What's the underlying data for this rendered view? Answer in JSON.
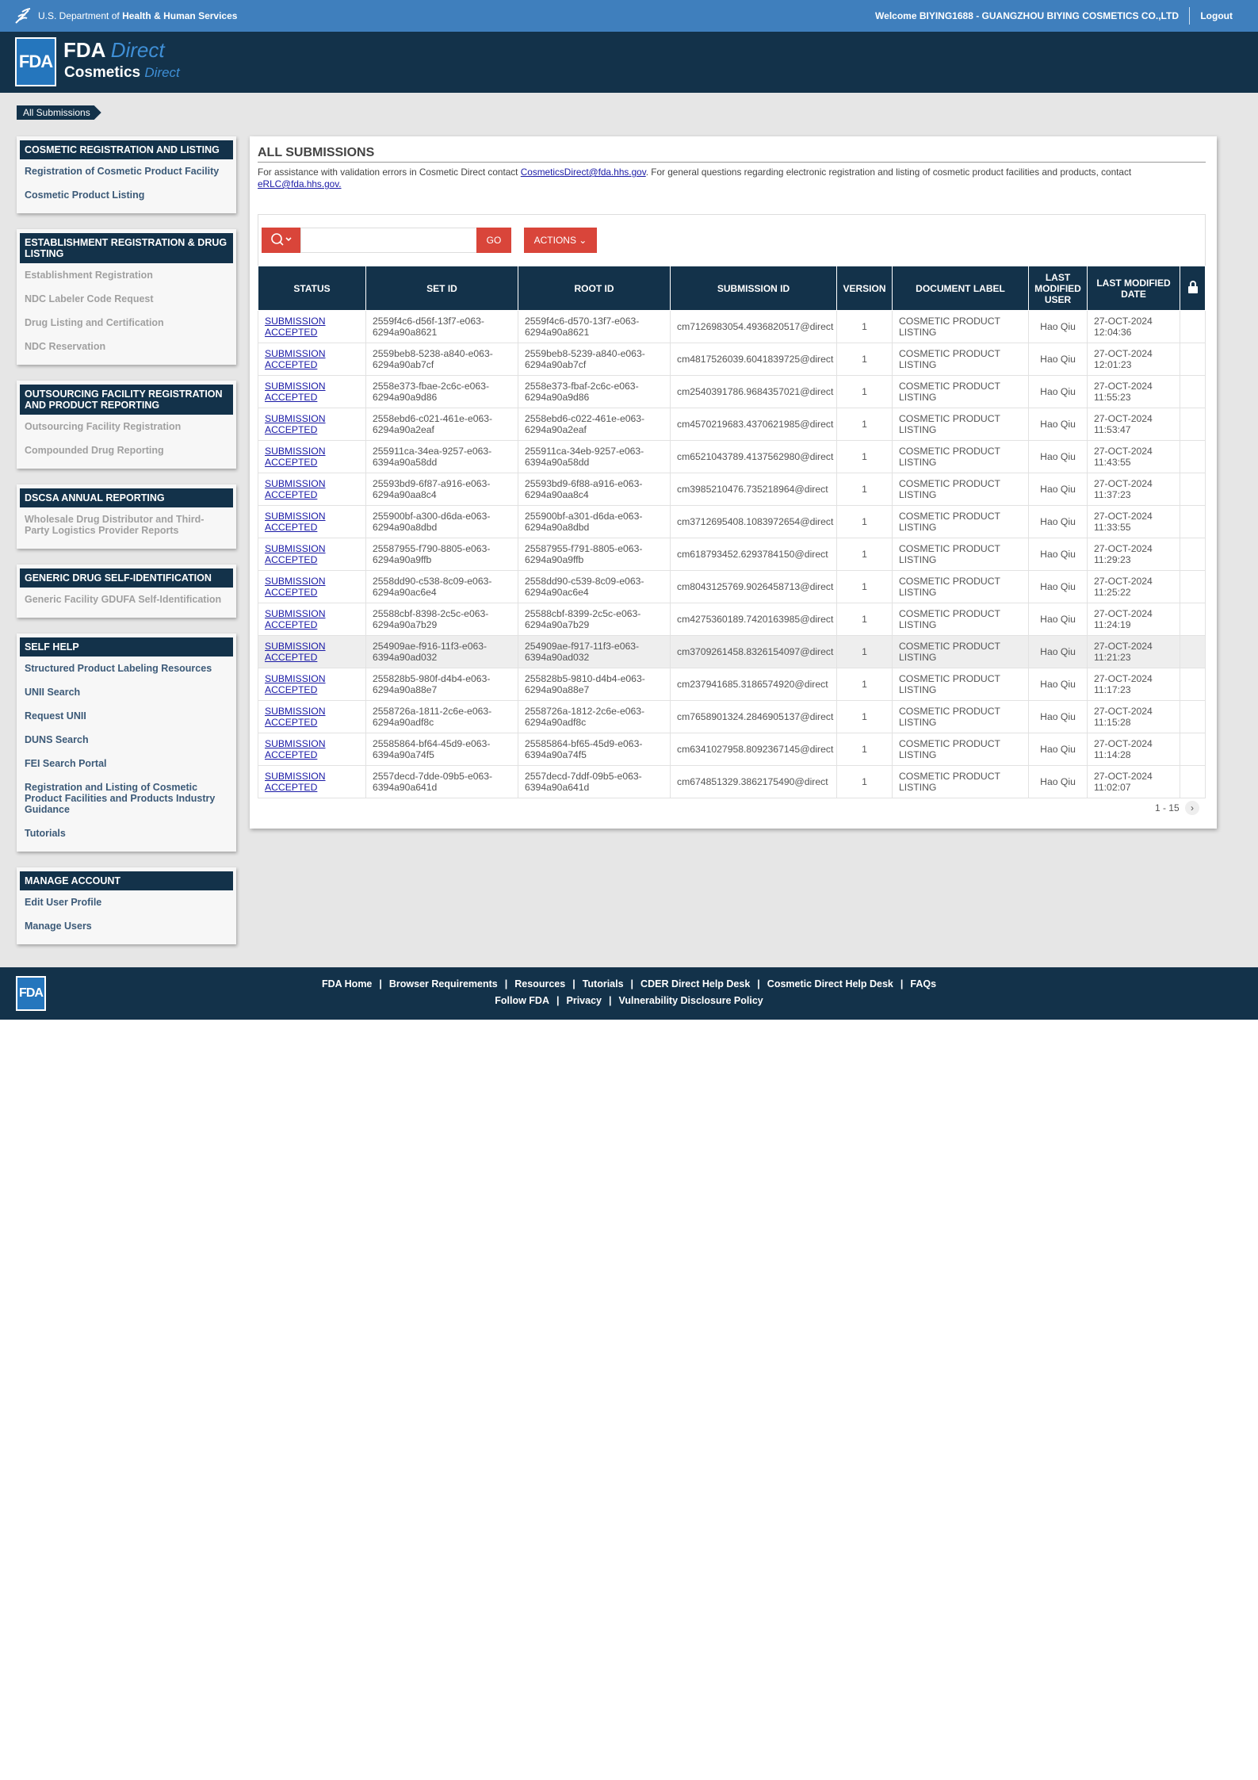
{
  "top_bar": {
    "agency_prefix": "U.S. Department of",
    "agency": "Health & Human Services",
    "welcome": "Welcome BIYING1688 - GUANGZHOU BIYING COSMETICS CO.,LTD",
    "logout": "Logout"
  },
  "header": {
    "logo": "FDA",
    "brand": "FDA",
    "brand_suffix": "Direct",
    "product": "Cosmetics",
    "product_suffix": "Direct"
  },
  "breadcrumb": "All Submissions",
  "sidebar": [
    {
      "title": "COSMETIC REGISTRATION AND LISTING",
      "enabled": true,
      "links": [
        "Registration of Cosmetic Product Facility",
        "Cosmetic Product Listing"
      ]
    },
    {
      "title": "ESTABLISHMENT REGISTRATION & DRUG LISTING",
      "enabled": false,
      "links": [
        "Establishment Registration",
        "NDC Labeler Code Request",
        "Drug Listing and Certification",
        "NDC Reservation"
      ]
    },
    {
      "title": "OUTSOURCING FACILITY REGISTRATION AND PRODUCT REPORTING",
      "enabled": false,
      "links": [
        "Outsourcing Facility Registration",
        "Compounded Drug Reporting"
      ]
    },
    {
      "title": "DSCSA ANNUAL REPORTING",
      "enabled": false,
      "links": [
        "Wholesale Drug Distributor and Third-Party Logistics Provider Reports"
      ]
    },
    {
      "title": "GENERIC DRUG SELF-IDENTIFICATION",
      "enabled": false,
      "links": [
        "Generic Facility GDUFA Self-Identification"
      ]
    },
    {
      "title": "SELF HELP",
      "enabled": true,
      "links": [
        "Structured Product Labeling Resources",
        "UNII Search",
        "Request UNII",
        "DUNS Search",
        "FEI Search Portal",
        "Registration and Listing of Cosmetic Product Facilities and Products Industry Guidance",
        "Tutorials"
      ]
    },
    {
      "title": "MANAGE ACCOUNT",
      "enabled": true,
      "links": [
        "Edit User Profile",
        "Manage Users"
      ]
    }
  ],
  "main": {
    "title": "ALL SUBMISSIONS",
    "notice": {
      "text_before": "For assistance with validation errors in Cosmetic Direct contact ",
      "link1": "CosmeticsDirect@fda.hhs.gov",
      "text_middle": ". For general questions regarding electronic registration and listing of cosmetic product facilities and products, contact ",
      "link2": "eRLC@fda.hhs.gov."
    },
    "go": "GO",
    "actions": "ACTIONS",
    "columns": [
      "STATUS",
      "SET ID",
      "ROOT ID",
      "SUBMISSION ID",
      "VERSION",
      "DOCUMENT LABEL",
      "LAST MODIFIED USER",
      "LAST MODIFIED DATE"
    ],
    "rows": [
      [
        "SUBMISSION ACCEPTED",
        "2559f4c6-d56f-13f7-e063-6294a90a8621",
        "2559f4c6-d570-13f7-e063-6294a90a8621",
        "cm7126983054.4936820517@direct",
        "1",
        "COSMETIC PRODUCT LISTING",
        "Hao Qiu",
        "27-OCT-2024 12:04:36"
      ],
      [
        "SUBMISSION ACCEPTED",
        "2559beb8-5238-a840-e063-6294a90ab7cf",
        "2559beb8-5239-a840-e063-6294a90ab7cf",
        "cm4817526039.6041839725@direct",
        "1",
        "COSMETIC PRODUCT LISTING",
        "Hao Qiu",
        "27-OCT-2024 12:01:23"
      ],
      [
        "SUBMISSION ACCEPTED",
        "2558e373-fbae-2c6c-e063-6294a90a9d86",
        "2558e373-fbaf-2c6c-e063-6294a90a9d86",
        "cm2540391786.9684357021@direct",
        "1",
        "COSMETIC PRODUCT LISTING",
        "Hao Qiu",
        "27-OCT-2024 11:55:23"
      ],
      [
        "SUBMISSION ACCEPTED",
        "2558ebd6-c021-461e-e063-6294a90a2eaf",
        "2558ebd6-c022-461e-e063-6294a90a2eaf",
        "cm4570219683.4370621985@direct",
        "1",
        "COSMETIC PRODUCT LISTING",
        "Hao Qiu",
        "27-OCT-2024 11:53:47"
      ],
      [
        "SUBMISSION ACCEPTED",
        "255911ca-34ea-9257-e063-6394a90a58dd",
        "255911ca-34eb-9257-e063-6394a90a58dd",
        "cm6521043789.4137562980@direct",
        "1",
        "COSMETIC PRODUCT LISTING",
        "Hao Qiu",
        "27-OCT-2024 11:43:55"
      ],
      [
        "SUBMISSION ACCEPTED",
        "25593bd9-6f87-a916-e063-6294a90aa8c4",
        "25593bd9-6f88-a916-e063-6294a90aa8c4",
        "cm3985210476.735218964@direct",
        "1",
        "COSMETIC PRODUCT LISTING",
        "Hao Qiu",
        "27-OCT-2024 11:37:23"
      ],
      [
        "SUBMISSION ACCEPTED",
        "255900bf-a300-d6da-e063-6294a90a8dbd",
        "255900bf-a301-d6da-e063-6294a90a8dbd",
        "cm3712695408.1083972654@direct",
        "1",
        "COSMETIC PRODUCT LISTING",
        "Hao Qiu",
        "27-OCT-2024 11:33:55"
      ],
      [
        "SUBMISSION ACCEPTED",
        "25587955-f790-8805-e063-6294a90a9ffb",
        "25587955-f791-8805-e063-6294a90a9ffb",
        "cm618793452.6293784150@direct",
        "1",
        "COSMETIC PRODUCT LISTING",
        "Hao Qiu",
        "27-OCT-2024 11:29:23"
      ],
      [
        "SUBMISSION ACCEPTED",
        "2558dd90-c538-8c09-e063-6294a90ac6e4",
        "2558dd90-c539-8c09-e063-6294a90ac6e4",
        "cm8043125769.9026458713@direct",
        "1",
        "COSMETIC PRODUCT LISTING",
        "Hao Qiu",
        "27-OCT-2024 11:25:22"
      ],
      [
        "SUBMISSION ACCEPTED",
        "25588cbf-8398-2c5c-e063-6294a90a7b29",
        "25588cbf-8399-2c5c-e063-6294a90a7b29",
        "cm4275360189.7420163985@direct",
        "1",
        "COSMETIC PRODUCT LISTING",
        "Hao Qiu",
        "27-OCT-2024 11:24:19"
      ],
      [
        "SUBMISSION ACCEPTED",
        "254909ae-f916-11f3-e063-6394a90ad032",
        "254909ae-f917-11f3-e063-6394a90ad032",
        "cm3709261458.8326154097@direct",
        "1",
        "COSMETIC PRODUCT LISTING",
        "Hao Qiu",
        "27-OCT-2024 11:21:23"
      ],
      [
        "SUBMISSION ACCEPTED",
        "255828b5-980f-d4b4-e063-6294a90a88e7",
        "255828b5-9810-d4b4-e063-6294a90a88e7",
        "cm237941685.3186574920@direct",
        "1",
        "COSMETIC PRODUCT LISTING",
        "Hao Qiu",
        "27-OCT-2024 11:17:23"
      ],
      [
        "SUBMISSION ACCEPTED",
        "2558726a-1811-2c6e-e063-6294a90adf8c",
        "2558726a-1812-2c6e-e063-6294a90adf8c",
        "cm7658901324.2846905137@direct",
        "1",
        "COSMETIC PRODUCT LISTING",
        "Hao Qiu",
        "27-OCT-2024 11:15:28"
      ],
      [
        "SUBMISSION ACCEPTED",
        "25585864-bf64-45d9-e063-6394a90a74f5",
        "25585864-bf65-45d9-e063-6394a90a74f5",
        "cm6341027958.8092367145@direct",
        "1",
        "COSMETIC PRODUCT LISTING",
        "Hao Qiu",
        "27-OCT-2024 11:14:28"
      ],
      [
        "SUBMISSION ACCEPTED",
        "2557decd-7dde-09b5-e063-6394a90a641d",
        "2557decd-7ddf-09b5-e063-6394a90a641d",
        "cm674851329.3862175490@direct",
        "1",
        "COSMETIC PRODUCT LISTING",
        "Hao Qiu",
        "27-OCT-2024 11:02:07"
      ]
    ],
    "pagination": "1 - 15"
  },
  "footer": {
    "logo": "FDA",
    "links": [
      "FDA Home",
      "Browser Requirements",
      "Resources",
      "Tutorials",
      "CDER Direct Help Desk",
      "Cosmetic Direct Help Desk",
      "FAQs"
    ],
    "links2": [
      "Follow FDA",
      "Privacy",
      "Vulnerability Disclosure Policy"
    ]
  }
}
